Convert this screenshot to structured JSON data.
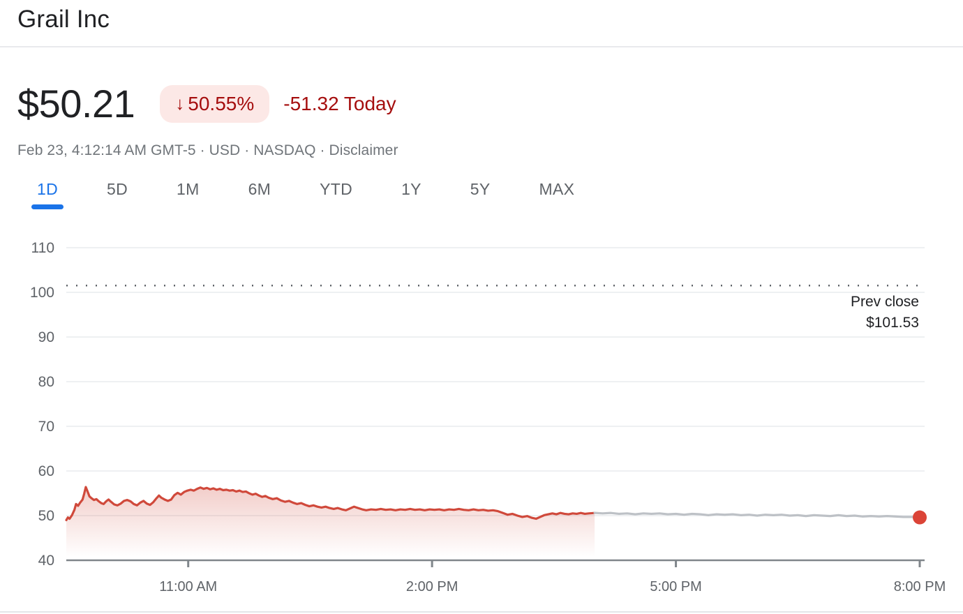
{
  "header": {
    "title": "Grail Inc"
  },
  "quote": {
    "price": "$50.21",
    "change_arrow": "↓",
    "change_percent": "50.55%",
    "change_today": "-51.32 Today",
    "direction": "down"
  },
  "meta": {
    "timestamp": "Feb 23, 4:12:14 AM GMT-5",
    "separator": " · ",
    "currency": "USD",
    "exchange": "NASDAQ",
    "disclaimer": "Disclaimer"
  },
  "range_tabs": [
    {
      "label": "1D",
      "active": true
    },
    {
      "label": "5D",
      "active": false
    },
    {
      "label": "1M",
      "active": false
    },
    {
      "label": "6M",
      "active": false
    },
    {
      "label": "YTD",
      "active": false
    },
    {
      "label": "1Y",
      "active": false
    },
    {
      "label": "5Y",
      "active": false
    },
    {
      "label": "MAX",
      "active": false
    }
  ],
  "colors": {
    "accent_blue": "#1a73e8",
    "down_text_red": "#a50e0e",
    "down_badge_bg": "#fce8e6",
    "line_red": "#d0493b",
    "after_hours_gray": "#bdc1c6",
    "end_dot_red": "#db4437"
  },
  "chart_data": {
    "type": "line",
    "title": "Grail Inc intraday price (1D)",
    "x_unit": "hour_of_day",
    "x_range": [
      9.5,
      20
    ],
    "y_range": [
      40,
      110
    ],
    "y_ticks": [
      110,
      100,
      90,
      80,
      70,
      60,
      50,
      40
    ],
    "x_ticks": [
      {
        "hour": 11,
        "label": "11:00 AM"
      },
      {
        "hour": 14,
        "label": "2:00 PM"
      },
      {
        "hour": 17,
        "label": "5:00 PM"
      },
      {
        "hour": 20,
        "label": "8:00 PM"
      }
    ],
    "grid": true,
    "legend": "none",
    "prev_close": {
      "value": 101.53,
      "label_line1": "Prev close",
      "label_line2": "$101.53"
    },
    "end_dot": {
      "color": "#db4437"
    },
    "series": [
      {
        "name": "regular-session",
        "color": "#d0493b",
        "fill": true,
        "points": [
          [
            9.5,
            49.0
          ],
          [
            9.52,
            49.6
          ],
          [
            9.54,
            49.3
          ],
          [
            9.57,
            50.1
          ],
          [
            9.6,
            51.3
          ],
          [
            9.62,
            52.6
          ],
          [
            9.645,
            52.2
          ],
          [
            9.67,
            52.9
          ],
          [
            9.7,
            53.6
          ],
          [
            9.72,
            54.9
          ],
          [
            9.74,
            56.4
          ],
          [
            9.76,
            55.5
          ],
          [
            9.785,
            54.3
          ],
          [
            9.81,
            53.9
          ],
          [
            9.84,
            53.5
          ],
          [
            9.87,
            53.7
          ],
          [
            9.9,
            53.2
          ],
          [
            9.93,
            52.8
          ],
          [
            9.96,
            52.6
          ],
          [
            9.99,
            53.2
          ],
          [
            10.02,
            53.6
          ],
          [
            10.05,
            53.1
          ],
          [
            10.09,
            52.5
          ],
          [
            10.13,
            52.3
          ],
          [
            10.17,
            52.7
          ],
          [
            10.21,
            53.3
          ],
          [
            10.25,
            53.5
          ],
          [
            10.29,
            53.2
          ],
          [
            10.33,
            52.6
          ],
          [
            10.37,
            52.3
          ],
          [
            10.41,
            52.9
          ],
          [
            10.45,
            53.3
          ],
          [
            10.49,
            52.7
          ],
          [
            10.53,
            52.4
          ],
          [
            10.57,
            53.0
          ],
          [
            10.61,
            53.9
          ],
          [
            10.64,
            54.5
          ],
          [
            10.67,
            54.0
          ],
          [
            10.71,
            53.6
          ],
          [
            10.75,
            53.3
          ],
          [
            10.79,
            53.6
          ],
          [
            10.83,
            54.6
          ],
          [
            10.87,
            55.1
          ],
          [
            10.91,
            54.7
          ],
          [
            10.95,
            55.3
          ],
          [
            10.99,
            55.6
          ],
          [
            11.03,
            55.8
          ],
          [
            11.07,
            55.6
          ],
          [
            11.11,
            56.0
          ],
          [
            11.15,
            56.3
          ],
          [
            11.19,
            56.0
          ],
          [
            11.23,
            56.2
          ],
          [
            11.27,
            55.9
          ],
          [
            11.31,
            56.1
          ],
          [
            11.35,
            55.8
          ],
          [
            11.39,
            56.0
          ],
          [
            11.43,
            55.7
          ],
          [
            11.47,
            55.8
          ],
          [
            11.51,
            55.6
          ],
          [
            11.55,
            55.7
          ],
          [
            11.59,
            55.4
          ],
          [
            11.63,
            55.6
          ],
          [
            11.67,
            55.3
          ],
          [
            11.71,
            55.4
          ],
          [
            11.75,
            55.0
          ],
          [
            11.79,
            54.7
          ],
          [
            11.83,
            54.9
          ],
          [
            11.87,
            54.5
          ],
          [
            11.91,
            54.2
          ],
          [
            11.95,
            54.4
          ],
          [
            11.99,
            54.0
          ],
          [
            12.04,
            53.7
          ],
          [
            12.09,
            53.9
          ],
          [
            12.14,
            53.4
          ],
          [
            12.19,
            53.1
          ],
          [
            12.24,
            53.3
          ],
          [
            12.29,
            52.9
          ],
          [
            12.34,
            52.6
          ],
          [
            12.39,
            52.8
          ],
          [
            12.44,
            52.4
          ],
          [
            12.49,
            52.1
          ],
          [
            12.54,
            52.3
          ],
          [
            12.59,
            52.0
          ],
          [
            12.64,
            51.8
          ],
          [
            12.69,
            52.0
          ],
          [
            12.74,
            51.7
          ],
          [
            12.79,
            51.5
          ],
          [
            12.84,
            51.7
          ],
          [
            12.89,
            51.4
          ],
          [
            12.94,
            51.2
          ],
          [
            12.99,
            51.6
          ],
          [
            13.04,
            52.0
          ],
          [
            13.09,
            51.7
          ],
          [
            13.14,
            51.4
          ],
          [
            13.19,
            51.2
          ],
          [
            13.25,
            51.4
          ],
          [
            13.31,
            51.3
          ],
          [
            13.37,
            51.5
          ],
          [
            13.43,
            51.3
          ],
          [
            13.49,
            51.4
          ],
          [
            13.55,
            51.2
          ],
          [
            13.61,
            51.4
          ],
          [
            13.67,
            51.3
          ],
          [
            13.73,
            51.5
          ],
          [
            13.79,
            51.3
          ],
          [
            13.85,
            51.4
          ],
          [
            13.91,
            51.2
          ],
          [
            13.97,
            51.4
          ],
          [
            14.03,
            51.3
          ],
          [
            14.09,
            51.4
          ],
          [
            14.15,
            51.2
          ],
          [
            14.21,
            51.4
          ],
          [
            14.27,
            51.3
          ],
          [
            14.33,
            51.5
          ],
          [
            14.39,
            51.3
          ],
          [
            14.45,
            51.2
          ],
          [
            14.51,
            51.4
          ],
          [
            14.57,
            51.2
          ],
          [
            14.63,
            51.3
          ],
          [
            14.69,
            51.1
          ],
          [
            14.75,
            51.2
          ],
          [
            14.81,
            51.0
          ],
          [
            14.87,
            50.6
          ],
          [
            14.93,
            50.2
          ],
          [
            14.99,
            50.4
          ],
          [
            15.05,
            50.0
          ],
          [
            15.11,
            49.7
          ],
          [
            15.17,
            49.9
          ],
          [
            15.23,
            49.5
          ],
          [
            15.28,
            49.3
          ],
          [
            15.33,
            49.7
          ],
          [
            15.38,
            50.1
          ],
          [
            15.43,
            50.3
          ],
          [
            15.48,
            50.5
          ],
          [
            15.53,
            50.3
          ],
          [
            15.58,
            50.6
          ],
          [
            15.63,
            50.4
          ],
          [
            15.68,
            50.3
          ],
          [
            15.73,
            50.5
          ],
          [
            15.78,
            50.4
          ],
          [
            15.83,
            50.6
          ],
          [
            15.88,
            50.4
          ],
          [
            15.93,
            50.5
          ],
          [
            16.0,
            50.6
          ]
        ]
      },
      {
        "name": "after-hours",
        "color": "#bdc1c6",
        "fill": false,
        "points": [
          [
            16.0,
            50.6
          ],
          [
            16.1,
            50.5
          ],
          [
            16.2,
            50.6
          ],
          [
            16.3,
            50.4
          ],
          [
            16.4,
            50.5
          ],
          [
            16.5,
            50.3
          ],
          [
            16.6,
            50.5
          ],
          [
            16.7,
            50.4
          ],
          [
            16.8,
            50.5
          ],
          [
            16.9,
            50.3
          ],
          [
            17.0,
            50.4
          ],
          [
            17.1,
            50.2
          ],
          [
            17.2,
            50.4
          ],
          [
            17.3,
            50.3
          ],
          [
            17.4,
            50.1
          ],
          [
            17.5,
            50.3
          ],
          [
            17.6,
            50.2
          ],
          [
            17.7,
            50.3
          ],
          [
            17.8,
            50.1
          ],
          [
            17.9,
            50.2
          ],
          [
            18.0,
            50.0
          ],
          [
            18.1,
            50.2
          ],
          [
            18.2,
            50.1
          ],
          [
            18.3,
            50.2
          ],
          [
            18.4,
            50.0
          ],
          [
            18.5,
            50.1
          ],
          [
            18.6,
            49.9
          ],
          [
            18.7,
            50.1
          ],
          [
            18.8,
            50.0
          ],
          [
            18.9,
            49.9
          ],
          [
            19.0,
            50.1
          ],
          [
            19.1,
            49.9
          ],
          [
            19.2,
            50.0
          ],
          [
            19.3,
            49.8
          ],
          [
            19.4,
            49.9
          ],
          [
            19.5,
            49.8
          ],
          [
            19.6,
            49.9
          ],
          [
            19.7,
            49.8
          ],
          [
            19.8,
            49.7
          ],
          [
            19.9,
            49.7
          ],
          [
            20.0,
            49.6
          ]
        ]
      }
    ]
  }
}
